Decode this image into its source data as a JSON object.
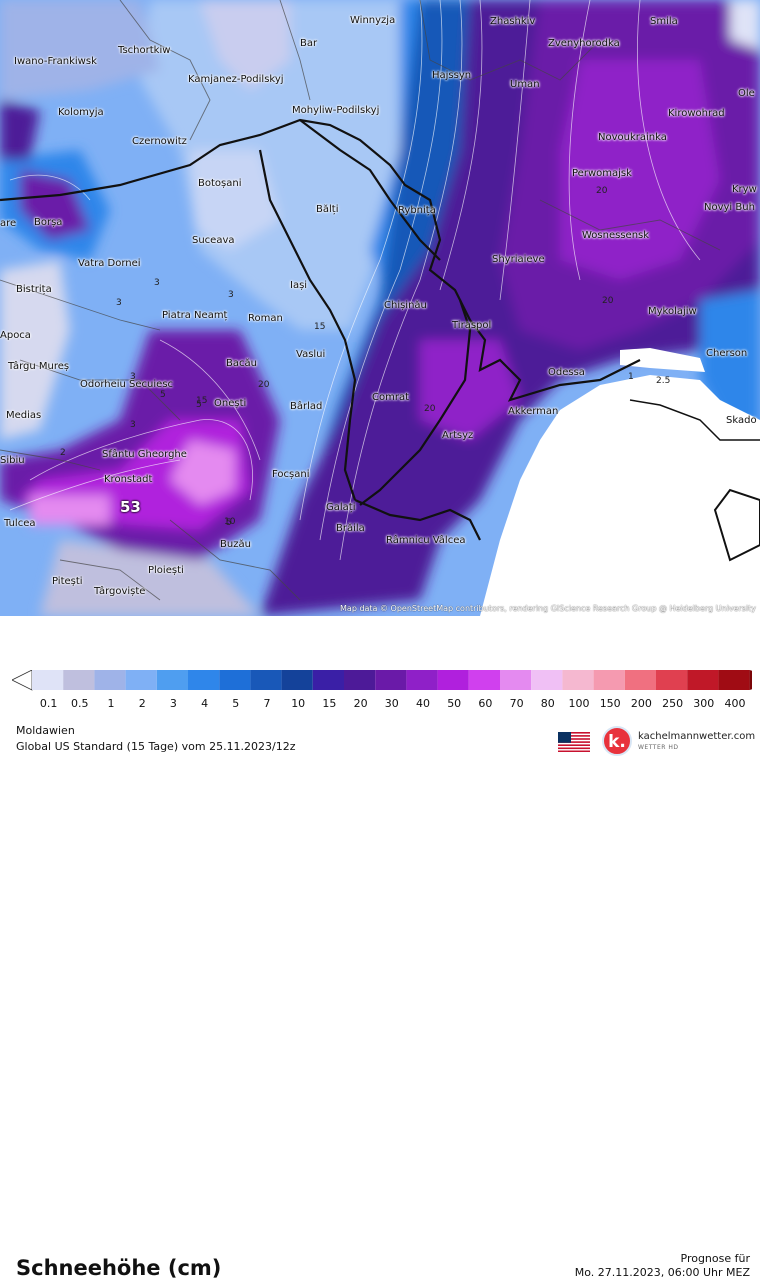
{
  "map": {
    "attribution": "Map data © OpenStreetMap contributors, rendering GIScience Research Group @ Heidelberg University",
    "max_value_label": "53",
    "contour_labels": [
      "3",
      "3",
      "3",
      "3",
      "3",
      "5",
      "5",
      "5",
      "10",
      "15",
      "15",
      "20",
      "20",
      "20",
      "20",
      "2",
      "1",
      "2.5"
    ],
    "cities": [
      {
        "name": "Winnyzja"
      },
      {
        "name": "Zhashkiv"
      },
      {
        "name": "Smila"
      },
      {
        "name": "Bar"
      },
      {
        "name": "Zvenyhorodka"
      },
      {
        "name": "Tschortkiw"
      },
      {
        "name": "Iwano-Frankiwsk"
      },
      {
        "name": "Kamjanez-Podilskyj"
      },
      {
        "name": "Hajssyn"
      },
      {
        "name": "Uman"
      },
      {
        "name": "Ole"
      },
      {
        "name": "Kolomyja"
      },
      {
        "name": "Mohyliw-Podilskyj"
      },
      {
        "name": "Kirowohrad"
      },
      {
        "name": "Czernowitz"
      },
      {
        "name": "Novoukrainka"
      },
      {
        "name": "Perwomajsk"
      },
      {
        "name": "Kryw"
      },
      {
        "name": "Botoșani"
      },
      {
        "name": "Bălți"
      },
      {
        "name": "Rybnița"
      },
      {
        "name": "Novyi Buh"
      },
      {
        "name": "Borșa"
      },
      {
        "name": "Suceava"
      },
      {
        "name": "Wosnessensk"
      },
      {
        "name": "Vatra Dornei"
      },
      {
        "name": "Shyriaieve"
      },
      {
        "name": "Bistrița"
      },
      {
        "name": "Iași"
      },
      {
        "name": "Chișinău"
      },
      {
        "name": "Piatra Neamț"
      },
      {
        "name": "Roman"
      },
      {
        "name": "Mykolajiw"
      },
      {
        "name": "Tiraspol"
      },
      {
        "name": "Vaslui"
      },
      {
        "name": "Cherson"
      },
      {
        "name": "Târgu Mureș"
      },
      {
        "name": "Bacău"
      },
      {
        "name": "Odessa"
      },
      {
        "name": "Odorheiu Secuiesc"
      },
      {
        "name": "Comrat"
      },
      {
        "name": "Onești"
      },
      {
        "name": "Bârlad"
      },
      {
        "name": "Akkerman"
      },
      {
        "name": "Skado"
      },
      {
        "name": "Medias"
      },
      {
        "name": "Artsyz"
      },
      {
        "name": "Sfântu Gheorghe"
      },
      {
        "name": "Focșani"
      },
      {
        "name": "Kronstadt"
      },
      {
        "name": "Galați"
      },
      {
        "name": "Brăila"
      },
      {
        "name": "Râmnicu Vâlcea"
      },
      {
        "name": "Tulcea"
      },
      {
        "name": "Buzău"
      },
      {
        "name": "Ploiești"
      },
      {
        "name": "Pitești"
      },
      {
        "name": "Târgoviște"
      },
      {
        "name": "Sibiu"
      },
      {
        "name": "Apoca"
      },
      {
        "name": "are"
      }
    ]
  },
  "header": {
    "title": "Schneehöhe (cm)",
    "forecast_label": "Prognose für",
    "forecast_time": "Mo. 27.11.2023, 06:00 Uhr MEZ"
  },
  "legend": {
    "ticks": [
      "0.1",
      "0.5",
      "1",
      "2",
      "3",
      "4",
      "5",
      "7",
      "10",
      "15",
      "20",
      "30",
      "40",
      "50",
      "60",
      "70",
      "80",
      "100",
      "150",
      "200",
      "250",
      "300",
      "400"
    ],
    "colors": [
      "#dfe3f7",
      "#bfbfde",
      "#9fb3e8",
      "#7fb0f5",
      "#4f9ef0",
      "#2f86ea",
      "#1e6fd8",
      "#1958b8",
      "#14429a",
      "#3a1fa6",
      "#4d1a98",
      "#6a1aa8",
      "#8f20c8",
      "#b020dd",
      "#d040ee",
      "#e48af0",
      "#f0c0f5",
      "#f5b8d0",
      "#f59ab0",
      "#f07080",
      "#e04050",
      "#c01828",
      "#a00c14",
      "#7a0508"
    ]
  },
  "footer": {
    "region": "Moldawien",
    "model": "Global US Standard (15 Tage) vom 25.11.2023/12z",
    "brand": "kachelmannwetter.com",
    "brand_sub": "WETTER HD",
    "logo_letter": "k."
  }
}
